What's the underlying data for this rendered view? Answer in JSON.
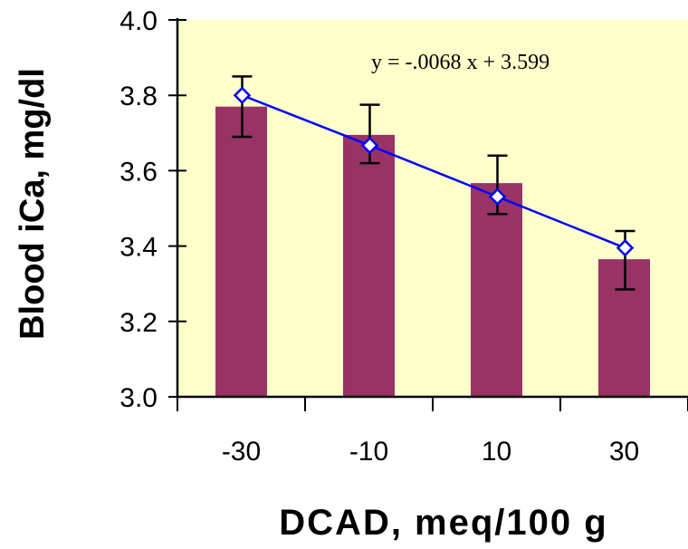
{
  "chart_data": {
    "type": "bar",
    "categories": [
      "-30",
      "-10",
      "10",
      "30"
    ],
    "series": [
      {
        "values": [
          3.77,
          3.695,
          3.567,
          3.365
        ]
      }
    ],
    "error_bars": [
      {
        "low": 3.69,
        "high": 3.85
      },
      {
        "low": 3.62,
        "high": 3.775
      },
      {
        "low": 3.485,
        "high": 3.64
      },
      {
        "low": 3.285,
        "high": 3.44
      }
    ],
    "trendline": {
      "values": [
        3.8,
        3.667,
        3.531,
        3.395
      ],
      "equation": "y =  -.0068 x  + 3.599"
    },
    "xlabel": "DCAD, meq/100 g",
    "ylabel": "Blood iCa, mg/dl",
    "ylim": [
      3.0,
      4.0
    ],
    "yticks": [
      "3.0",
      "3.2",
      "3.4",
      "3.6",
      "3.8",
      "4.0"
    ],
    "grid": false,
    "colors": {
      "plot_background": "#FFFFCC",
      "bar": "#993366",
      "trendline": "#0000FF",
      "marker_fill": "#FFFFFF",
      "error_bar": "#000000"
    }
  }
}
